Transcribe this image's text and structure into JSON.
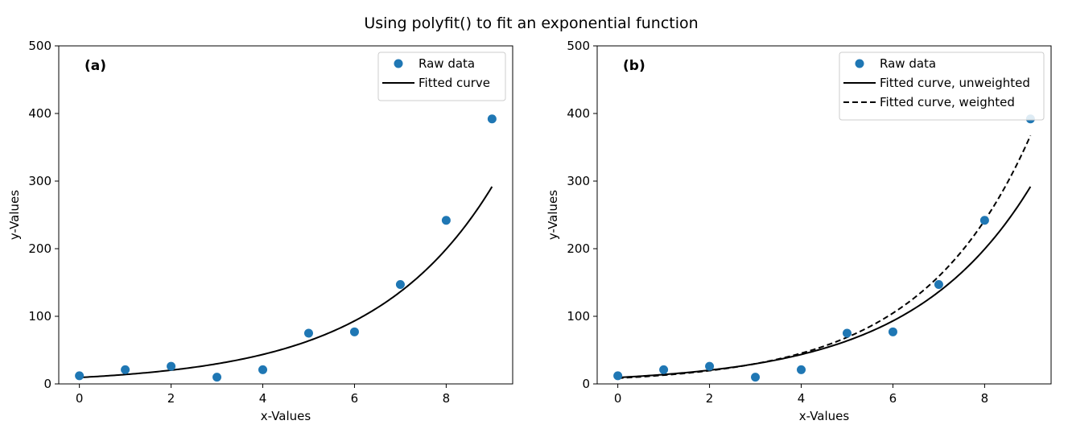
{
  "figure": {
    "title": "Using polyfit() to fit an exponential function"
  },
  "colors": {
    "points": "#1f77b4",
    "fit": "#000000"
  },
  "chart_data": [
    {
      "type": "scatter",
      "panel_label": "(a)",
      "xlabel": "x-Values",
      "ylabel": "y-Values",
      "xlim": [
        -0.45,
        9.45
      ],
      "ylim": [
        0,
        500
      ],
      "xticks": [
        0,
        2,
        4,
        6,
        8
      ],
      "yticks": [
        0,
        100,
        200,
        300,
        400,
        500
      ],
      "legend_position": "top-right",
      "series": [
        {
          "name": "Raw data",
          "kind": "points",
          "x": [
            0,
            1,
            2,
            3,
            4,
            5,
            6,
            7,
            8,
            9
          ],
          "y": [
            12,
            21,
            26,
            10,
            21,
            75,
            77,
            147,
            242,
            392
          ]
        },
        {
          "name": "Fitted curve",
          "kind": "line",
          "style": "solid",
          "model": "exponential",
          "a": 9.5,
          "b": 0.3805,
          "x_range": [
            0,
            9
          ]
        }
      ]
    },
    {
      "type": "scatter",
      "panel_label": "(b)",
      "xlabel": "x-Values",
      "ylabel": "y-Values",
      "xlim": [
        -0.45,
        9.45
      ],
      "ylim": [
        0,
        500
      ],
      "xticks": [
        0,
        2,
        4,
        6,
        8
      ],
      "yticks": [
        0,
        100,
        200,
        300,
        400,
        500
      ],
      "legend_position": "top-right",
      "series": [
        {
          "name": "Raw data",
          "kind": "points",
          "x": [
            0,
            1,
            2,
            3,
            4,
            5,
            6,
            7,
            8,
            9
          ],
          "y": [
            12,
            21,
            26,
            10,
            21,
            75,
            77,
            147,
            242,
            392
          ]
        },
        {
          "name": "Fitted curve, unweighted",
          "kind": "line",
          "style": "solid",
          "model": "exponential",
          "a": 9.5,
          "b": 0.3805,
          "x_range": [
            0,
            9
          ]
        },
        {
          "name": "Fitted curve, weighted",
          "kind": "line",
          "style": "dashed",
          "model": "exponential",
          "a": 8.5,
          "b": 0.4185,
          "x_range": [
            0,
            9
          ]
        }
      ]
    }
  ]
}
